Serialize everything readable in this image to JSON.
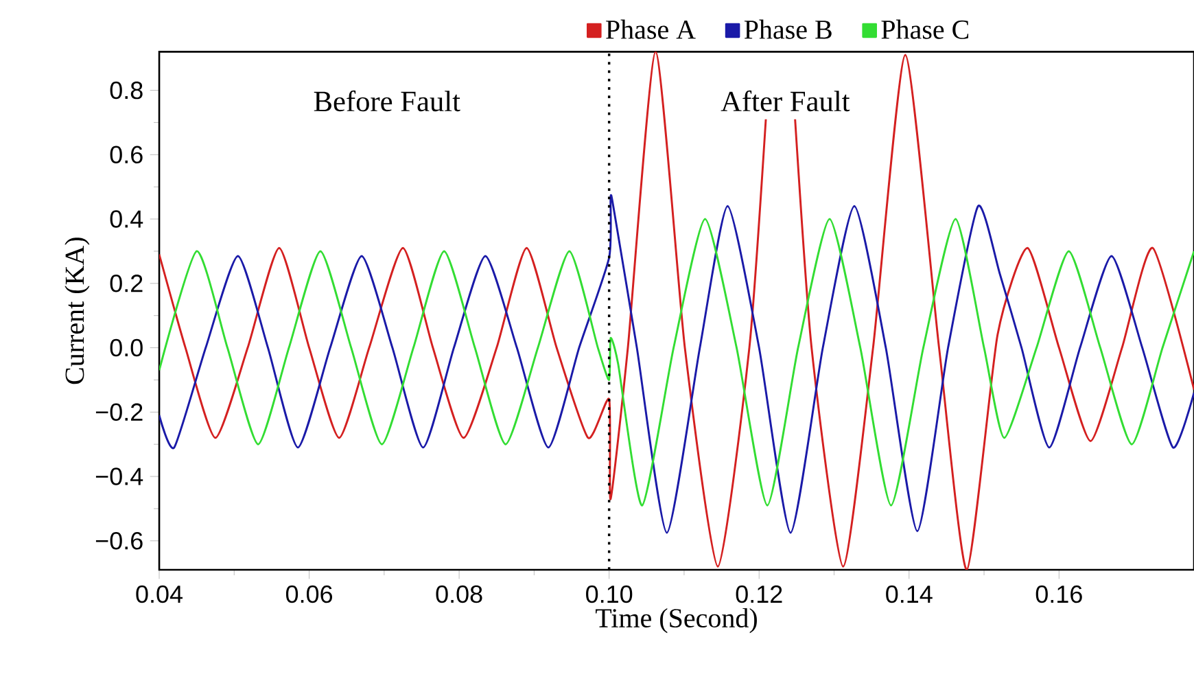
{
  "chart_data": {
    "type": "line",
    "xlabel": "Time (Second)",
    "ylabel": "Current (KA)",
    "xlim": [
      0.04,
      0.178
    ],
    "ylim": [
      -0.69,
      0.92
    ],
    "xticks": [
      0.04,
      0.06,
      0.08,
      {
        "value": 0.1,
        "label": "0.10"
      },
      0.12,
      0.14,
      0.16
    ],
    "yticks": [
      {
        "value": -0.6,
        "label": "−0.6"
      },
      {
        "value": -0.4,
        "label": "−0.4"
      },
      {
        "value": -0.2,
        "label": "−0.2"
      },
      {
        "value": 0,
        "label": "0.0"
      },
      0.2,
      0.4,
      0.6,
      0.8
    ],
    "legend": "top",
    "annotations": [
      "Before Fault",
      "After Fault"
    ],
    "ref_lines": [
      {
        "axis": "x",
        "value": 0.1,
        "color": "#000000",
        "line_style": "dotted"
      }
    ],
    "series": [
      {
        "name": "Phase A",
        "color": "#d42020",
        "x": [
          0.04,
          0.0435,
          0.0475,
          0.0518,
          0.056,
          0.06,
          0.064,
          0.068,
          0.0725,
          0.0765,
          0.0806,
          0.085,
          0.089,
          0.093,
          0.0972,
          0.1,
          0.1002,
          0.1025,
          0.1062,
          0.1101,
          0.1145,
          0.1187,
          0.1209,
          0.1228,
          0.1248,
          0.127,
          0.1312,
          0.1352,
          0.1395,
          0.144,
          0.1477,
          0.1518,
          0.1558,
          0.16,
          0.1642,
          0.1684,
          0.1725,
          0.178
        ],
        "values": [
          0.29,
          0,
          -0.28,
          0,
          0.31,
          0,
          -0.28,
          0,
          0.31,
          0,
          -0.28,
          0,
          0.31,
          0,
          -0.28,
          -0.16,
          -0.47,
          0,
          0.92,
          0,
          -0.68,
          0,
          0.71,
          null,
          0.71,
          0,
          -0.68,
          0,
          0.91,
          0,
          -0.69,
          0.04,
          0.31,
          0,
          -0.29,
          0,
          0.31,
          -0.13
        ]
      },
      {
        "name": "Phase B",
        "color": "#1a1aa8",
        "x": [
          0.04,
          0.042,
          0.0462,
          0.0505,
          0.0545,
          0.0585,
          0.0628,
          0.067,
          0.0711,
          0.0752,
          0.0793,
          0.0835,
          0.0877,
          0.0919,
          0.096,
          0.1,
          0.1002,
          0.1007,
          0.1037,
          0.1077,
          0.1121,
          0.1158,
          0.12,
          0.1242,
          0.1285,
          0.1327,
          0.1369,
          0.1411,
          0.1452,
          0.1492,
          0.1521,
          0.155,
          0.1587,
          0.1628,
          0.167,
          0.1711,
          0.1752,
          0.178
        ],
        "values": [
          -0.21,
          -0.31,
          0,
          0.285,
          0,
          -0.31,
          0,
          0.285,
          0,
          -0.31,
          0,
          0.285,
          0,
          -0.31,
          0,
          0.28,
          0.47,
          0.42,
          0,
          -0.575,
          0,
          0.44,
          0,
          -0.575,
          0,
          0.44,
          0,
          -0.57,
          0,
          0.44,
          0.23,
          0,
          -0.31,
          0,
          0.285,
          0,
          -0.31,
          -0.14
        ]
      },
      {
        "name": "Phase C",
        "color": "#33dd33",
        "x": [
          0.04,
          0.045,
          0.0491,
          0.0532,
          0.0573,
          0.0615,
          0.0656,
          0.0697,
          0.0739,
          0.078,
          0.0821,
          0.0862,
          0.0905,
          0.0947,
          0.0985,
          0.1,
          0.1002,
          0.1012,
          0.1044,
          0.1086,
          0.1128,
          0.117,
          0.1211,
          0.1252,
          0.1294,
          0.1335,
          0.1376,
          0.1419,
          0.1462,
          0.15,
          0.1527,
          0.157,
          0.1613,
          0.1655,
          0.1697,
          0.1738,
          0.178
        ],
        "values": [
          -0.07,
          0.3,
          0,
          -0.3,
          0,
          0.3,
          0,
          -0.3,
          0,
          0.3,
          0,
          -0.3,
          0,
          0.3,
          0,
          -0.1,
          0.03,
          -0.05,
          -0.49,
          0,
          0.4,
          0,
          -0.49,
          0,
          0.4,
          0,
          -0.49,
          0,
          0.4,
          0,
          -0.28,
          0,
          0.3,
          0,
          -0.3,
          0,
          0.3
        ]
      }
    ]
  }
}
